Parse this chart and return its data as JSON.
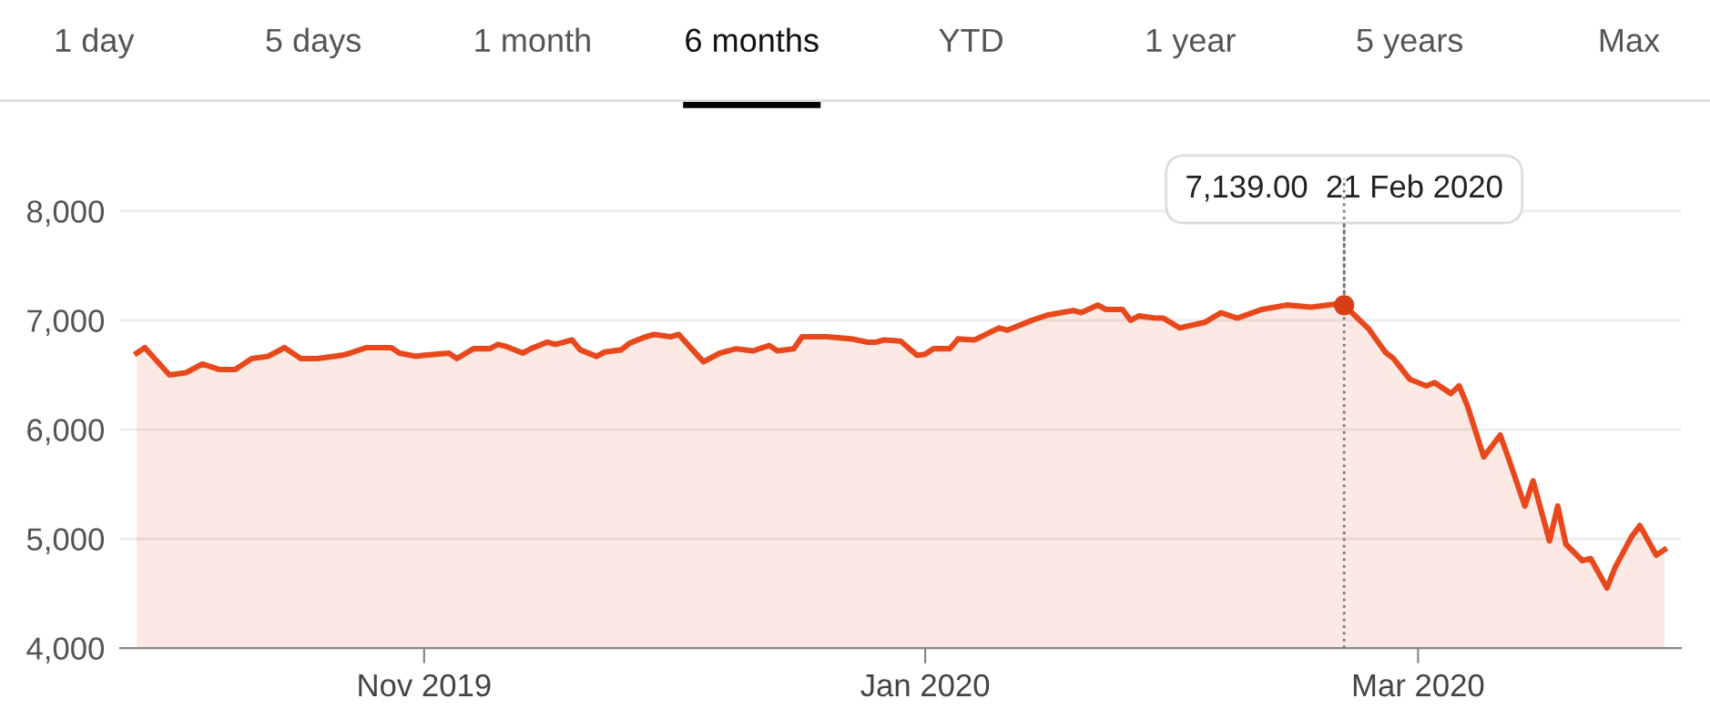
{
  "chart_data": {
    "type": "area",
    "x": [
      "2019-09-27",
      "2019-09-28",
      "2019-10-01",
      "2019-10-03",
      "2019-10-05",
      "2019-10-07",
      "2019-10-09",
      "2019-10-11",
      "2019-10-13",
      "2019-10-15",
      "2019-10-17",
      "2019-10-19",
      "2019-10-22",
      "2019-10-23",
      "2019-10-25",
      "2019-10-28",
      "2019-10-29",
      "2019-10-31",
      "2019-11-01",
      "2019-11-04",
      "2019-11-05",
      "2019-11-07",
      "2019-11-09",
      "2019-11-10",
      "2019-11-11",
      "2019-11-13",
      "2019-11-14",
      "2019-11-16",
      "2019-11-17",
      "2019-11-19",
      "2019-11-20",
      "2019-11-22",
      "2019-11-23",
      "2019-11-25",
      "2019-11-26",
      "2019-11-28",
      "2019-11-29",
      "2019-12-01",
      "2019-12-02",
      "2019-12-05",
      "2019-12-07",
      "2019-12-09",
      "2019-12-11",
      "2019-12-13",
      "2019-12-14",
      "2019-12-16",
      "2019-12-17",
      "2019-12-20",
      "2019-12-23",
      "2019-12-25",
      "2019-12-26",
      "2019-12-27",
      "2019-12-29",
      "2019-12-31",
      "2020-01-01",
      "2020-01-02",
      "2020-01-04",
      "2020-01-05",
      "2020-01-07",
      "2020-01-10",
      "2020-01-11",
      "2020-01-13",
      "2020-01-14",
      "2020-01-16",
      "2020-01-19",
      "2020-01-20",
      "2020-01-22",
      "2020-01-23",
      "2020-01-25",
      "2020-01-26",
      "2020-01-27",
      "2020-01-29",
      "2020-01-30",
      "2020-02-01",
      "2020-02-04",
      "2020-02-06",
      "2020-02-08",
      "2020-02-11",
      "2020-02-14",
      "2020-02-17",
      "2020-02-20",
      "2020-02-21",
      "2020-02-24",
      "2020-02-26",
      "2020-02-27",
      "2020-02-29",
      "2020-03-02",
      "2020-03-03",
      "2020-03-05",
      "2020-03-06",
      "2020-03-07",
      "2020-03-09",
      "2020-03-11",
      "2020-03-12",
      "2020-03-14",
      "2020-03-15",
      "2020-03-17",
      "2020-03-18",
      "2020-03-19",
      "2020-03-21",
      "2020-03-22",
      "2020-03-24",
      "2020-03-25",
      "2020-03-27",
      "2020-03-28",
      "2020-03-30",
      "2020-03-31"
    ],
    "series": [
      {
        "color": "#e8481c",
        "values": [
          6700,
          6750,
          6500,
          6520,
          6600,
          6550,
          6550,
          6650,
          6670,
          6750,
          6650,
          6650,
          6680,
          6700,
          6750,
          6750,
          6700,
          6670,
          6680,
          6700,
          6650,
          6740,
          6740,
          6780,
          6760,
          6700,
          6740,
          6800,
          6780,
          6820,
          6730,
          6670,
          6710,
          6730,
          6790,
          6850,
          6870,
          6850,
          6870,
          6620,
          6700,
          6740,
          6720,
          6770,
          6720,
          6740,
          6850,
          6850,
          6830,
          6800,
          6800,
          6820,
          6810,
          6680,
          6690,
          6740,
          6740,
          6830,
          6820,
          6930,
          6910,
          6970,
          7000,
          7050,
          7090,
          7070,
          7140,
          7100,
          7100,
          7000,
          7040,
          7020,
          7020,
          6930,
          6980,
          7070,
          7020,
          7100,
          7140,
          7120,
          7150,
          7139,
          6920,
          6710,
          6650,
          6460,
          6400,
          6430,
          6330,
          6400,
          6220,
          5750,
          5950,
          5740,
          5300,
          5530,
          4980,
          5300,
          4950,
          4800,
          4820,
          4550,
          4740,
          5020,
          5120,
          4850,
          4900
        ]
      },
      {
        "type": "scatter",
        "color": "#d63f16",
        "marker": "circle",
        "x": [
          "2020-02-21"
        ],
        "values": [
          7139
        ]
      }
    ],
    "xlim": [
      "2019-09-25",
      "2020-04-02"
    ],
    "xticks": [
      {
        "value": "2019-11-01",
        "label": "Nov 2019"
      },
      {
        "value": "2020-01-01",
        "label": "Jan 2020"
      },
      {
        "value": "2020-03-01",
        "label": "Mar 2020"
      }
    ],
    "ylim": [
      4000,
      8300
    ],
    "yticks": [
      {
        "value": 4000,
        "label": "4,000"
      },
      {
        "value": 5000,
        "label": "5,000"
      },
      {
        "value": 6000,
        "label": "6,000"
      },
      {
        "value": 7000,
        "label": "7,000"
      },
      {
        "value": 8000,
        "label": "8,000"
      }
    ],
    "grid": "y",
    "ref_lines": [
      {
        "axis": "x",
        "value": "2020-02-21",
        "label": null,
        "color": "#777777",
        "line_style": "dotted"
      }
    ],
    "annotations": [
      {
        "text": "7,139.00  21 Feb 2020",
        "x": "2020-02-21",
        "y": 7139
      },
      "1 day",
      "5 days",
      "1 month",
      "6 months",
      "YTD",
      "1 year",
      "5 years",
      "Max"
    ]
  }
}
